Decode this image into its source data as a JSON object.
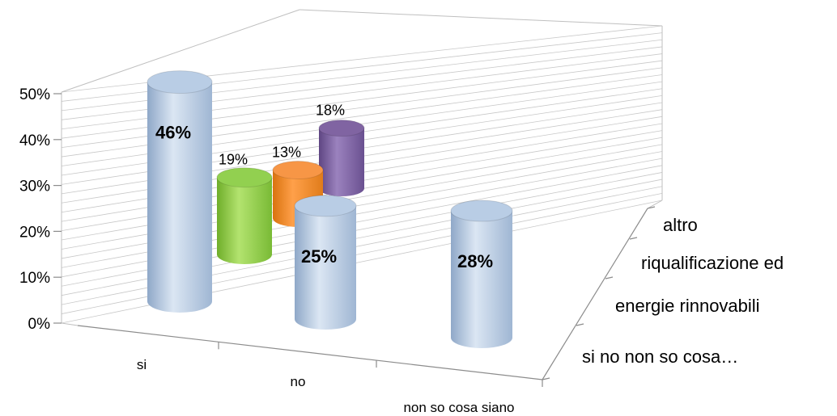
{
  "colors": {
    "si": "#b9cde5",
    "energie": "#92d050",
    "riqualificazione": "#f79646",
    "altro": "#8064a2"
  },
  "chart_data": {
    "type": "bar",
    "style": "3d-cylinder",
    "title": "",
    "xlabel": "",
    "ylabel": "",
    "ylim": [
      0,
      0.5
    ],
    "yticks": [
      "0%",
      "10%",
      "20%",
      "30%",
      "40%",
      "50%"
    ],
    "categories": [
      "si",
      "no",
      "non so cosa siano"
    ],
    "series": [
      {
        "name": "si no  non so cosa…",
        "values": [
          0.46,
          0.25,
          0.28
        ],
        "labels": [
          "46%",
          "25%",
          "28%"
        ]
      },
      {
        "name": "energie rinnovabili",
        "values": [
          0.19,
          null,
          null
        ],
        "labels": [
          "19%",
          "",
          ""
        ]
      },
      {
        "name": "riqualificazione ed",
        "values": [
          0.13,
          null,
          null
        ],
        "labels": [
          "13%",
          "",
          ""
        ]
      },
      {
        "name": "altro",
        "values": [
          0.18,
          null,
          null
        ],
        "labels": [
          "18%",
          "",
          ""
        ]
      }
    ],
    "grid": true,
    "legend": "none"
  }
}
